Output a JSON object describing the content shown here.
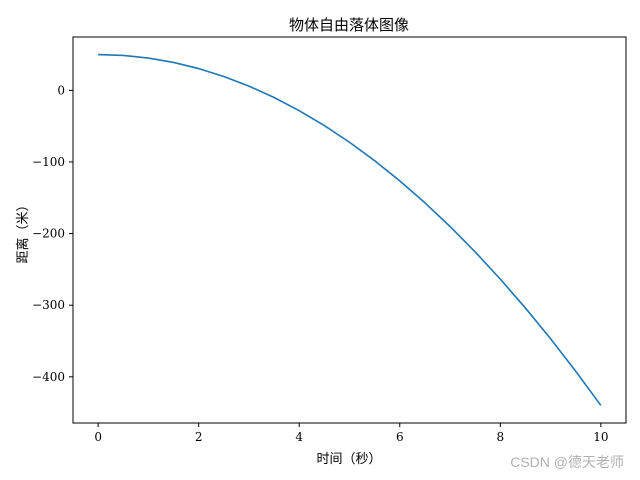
{
  "chart_data": {
    "type": "line",
    "title": "物体自由落体图像",
    "xlabel": "时间（秒）",
    "ylabel": "距离（米）",
    "xlim": [
      -0.5,
      10.5
    ],
    "ylim": [
      -464.5,
      74.5
    ],
    "x_ticks": [
      0,
      2,
      4,
      6,
      8,
      10
    ],
    "y_ticks": [
      0,
      -100,
      -200,
      -300,
      -400
    ],
    "x_tick_labels": [
      "0",
      "2",
      "4",
      "6",
      "8",
      "10"
    ],
    "y_tick_labels": [
      "0",
      "−100",
      "−200",
      "−300",
      "−400"
    ],
    "grid": false,
    "series": [
      {
        "color": "#1f77b4",
        "x": [
          0,
          0.5,
          1,
          1.5,
          2,
          2.5,
          3,
          3.5,
          4,
          4.5,
          5,
          5.5,
          6,
          6.5,
          7,
          7.5,
          8,
          8.5,
          9,
          9.5,
          10
        ],
        "y": [
          50,
          48.8,
          45.1,
          39,
          30.4,
          19.4,
          5.9,
          -10,
          -28.4,
          -49.2,
          -72.5,
          -98.2,
          -126.4,
          -157,
          -190.1,
          -225.6,
          -263.6,
          -304,
          -346.9,
          -392.2,
          -440
        ]
      }
    ]
  },
  "watermark": "CSDN @德天老师"
}
